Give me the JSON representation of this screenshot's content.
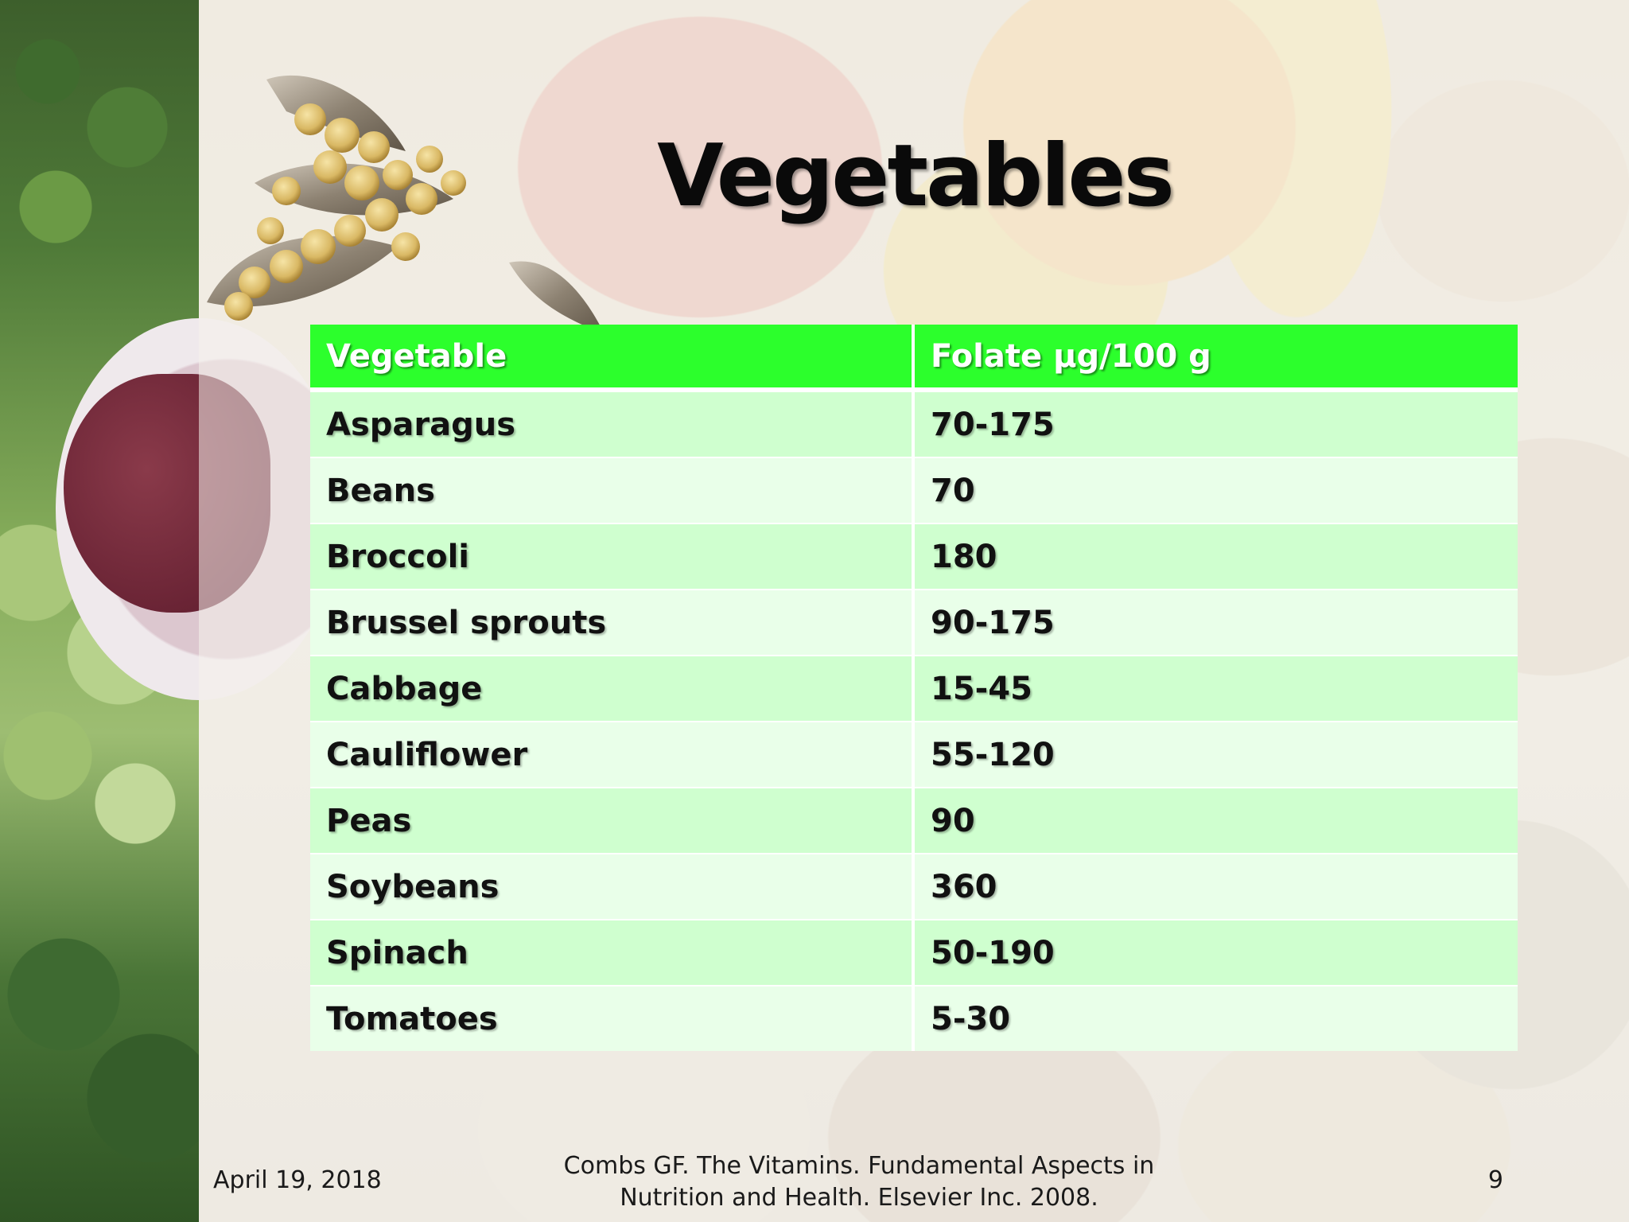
{
  "slide": {
    "title": "Vegetables",
    "table": {
      "headers": [
        "Vegetable",
        "Folate µg/100 g"
      ],
      "rows": [
        [
          "Asparagus",
          "70-175"
        ],
        [
          "Beans",
          "70"
        ],
        [
          "Broccoli",
          "180"
        ],
        [
          "Brussel sprouts",
          "90-175"
        ],
        [
          "Cabbage",
          "15-45"
        ],
        [
          "Cauliflower",
          "55-120"
        ],
        [
          "Peas",
          "90"
        ],
        [
          "Soybeans",
          "360"
        ],
        [
          "Spinach",
          "50-190"
        ],
        [
          "Tomatoes",
          "5-30"
        ]
      ]
    },
    "footer": {
      "date": "April 19, 2018",
      "citation_line1": "Combs GF. The Vitamins. Fundamental Aspects in",
      "citation_line2": "Nutrition and Health. Elsevier Inc. 2008.",
      "page_number": "9"
    }
  },
  "colors": {
    "header_bg": "#2cff2c",
    "row_odd": "#cfffcf",
    "row_even": "#e9ffe9"
  },
  "images": {
    "background": "fruit-vegetable-background-image",
    "decoration": "soybean-pods-image"
  }
}
